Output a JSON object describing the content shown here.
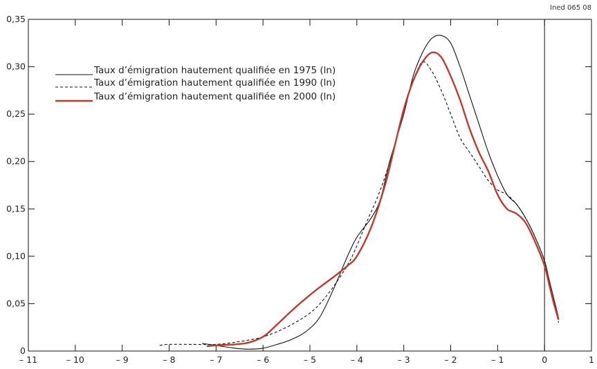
{
  "source_note": "Ined 065 08",
  "chart_data": {
    "type": "line",
    "title": "",
    "xlabel": "",
    "ylabel": "",
    "xlim": [
      -11,
      1
    ],
    "ylim": [
      0,
      0.35
    ],
    "x_ticks": [
      -11,
      -10,
      -9,
      -8,
      -7,
      -6,
      -5,
      -4,
      -3,
      -2,
      -1,
      0,
      1
    ],
    "x_tick_labels": [
      "– 11",
      "– 10",
      "– 9",
      "– 8",
      "– 7",
      "– 6",
      "– 5",
      "– 4",
      "– 3",
      "– 2",
      "– 1",
      "0",
      "1"
    ],
    "y_ticks": [
      0,
      0.05,
      0.1,
      0.15,
      0.2,
      0.25,
      0.3,
      0.35
    ],
    "y_tick_labels": [
      "0",
      "0,05",
      "0,10",
      "0,15",
      "0,20",
      "0,25",
      "0,30",
      "0,35"
    ],
    "vertical_reference_line_x": 0,
    "grid": false,
    "legend_position": "top-left",
    "series": [
      {
        "name": "Taux d’émigration hautement qualifiée en 1975 (ln)",
        "color": "#111111",
        "style": "solid",
        "x": [
          -7.3,
          -7.0,
          -6.6,
          -6.3,
          -6.0,
          -5.7,
          -5.4,
          -5.1,
          -4.8,
          -4.5,
          -4.2,
          -4.0,
          -3.7,
          -3.5,
          -3.3,
          -3.0,
          -2.8,
          -2.6,
          -2.4,
          -2.2,
          -2.0,
          -1.8,
          -1.6,
          -1.4,
          -1.2,
          -1.0,
          -0.8,
          -0.6,
          -0.4,
          -0.2,
          0.0,
          0.1,
          0.2,
          0.3
        ],
        "y": [
          0.008,
          0.006,
          0.003,
          0.002,
          0.003,
          0.007,
          0.012,
          0.02,
          0.035,
          0.065,
          0.1,
          0.12,
          0.14,
          0.16,
          0.2,
          0.25,
          0.29,
          0.315,
          0.33,
          0.333,
          0.325,
          0.3,
          0.27,
          0.24,
          0.21,
          0.185,
          0.165,
          0.155,
          0.14,
          0.12,
          0.095,
          0.075,
          0.055,
          0.035
        ]
      },
      {
        "name": "Taux d’émigration hautement qualifiée en 1990 (ln)",
        "color": "#111111",
        "style": "dashed",
        "x": [
          -8.2,
          -8.0,
          -7.5,
          -7.0,
          -6.5,
          -6.0,
          -5.5,
          -5.0,
          -4.7,
          -4.4,
          -4.1,
          -3.8,
          -3.5,
          -3.2,
          -3.0,
          -2.8,
          -2.6,
          -2.4,
          -2.2,
          -2.0,
          -1.8,
          -1.6,
          -1.4,
          -1.2,
          -1.0,
          -0.8,
          -0.6,
          -0.4,
          -0.2,
          0.0,
          0.1,
          0.2,
          0.3
        ],
        "y": [
          0.006,
          0.007,
          0.007,
          0.007,
          0.01,
          0.015,
          0.025,
          0.04,
          0.055,
          0.075,
          0.1,
          0.135,
          0.17,
          0.215,
          0.255,
          0.285,
          0.305,
          0.295,
          0.275,
          0.25,
          0.225,
          0.21,
          0.195,
          0.18,
          0.17,
          0.165,
          0.155,
          0.14,
          0.12,
          0.095,
          0.07,
          0.05,
          0.03
        ]
      },
      {
        "name": "Taux d’émigration hautement qualifiée en 2000 (ln)",
        "color": "#c0392b",
        "style": "solid",
        "x": [
          -7.2,
          -7.0,
          -6.6,
          -6.3,
          -6.0,
          -5.7,
          -5.4,
          -5.1,
          -4.8,
          -4.5,
          -4.2,
          -4.0,
          -3.7,
          -3.4,
          -3.2,
          -3.0,
          -2.8,
          -2.6,
          -2.4,
          -2.2,
          -2.0,
          -1.8,
          -1.6,
          -1.4,
          -1.2,
          -1.0,
          -0.8,
          -0.6,
          -0.4,
          -0.2,
          0.0,
          0.1,
          0.2,
          0.3
        ],
        "y": [
          0.005,
          0.006,
          0.007,
          0.009,
          0.015,
          0.028,
          0.042,
          0.055,
          0.067,
          0.078,
          0.09,
          0.1,
          0.13,
          0.175,
          0.215,
          0.255,
          0.285,
          0.305,
          0.315,
          0.31,
          0.29,
          0.265,
          0.235,
          0.21,
          0.19,
          0.165,
          0.15,
          0.145,
          0.135,
          0.115,
          0.09,
          0.07,
          0.05,
          0.033
        ]
      }
    ]
  }
}
